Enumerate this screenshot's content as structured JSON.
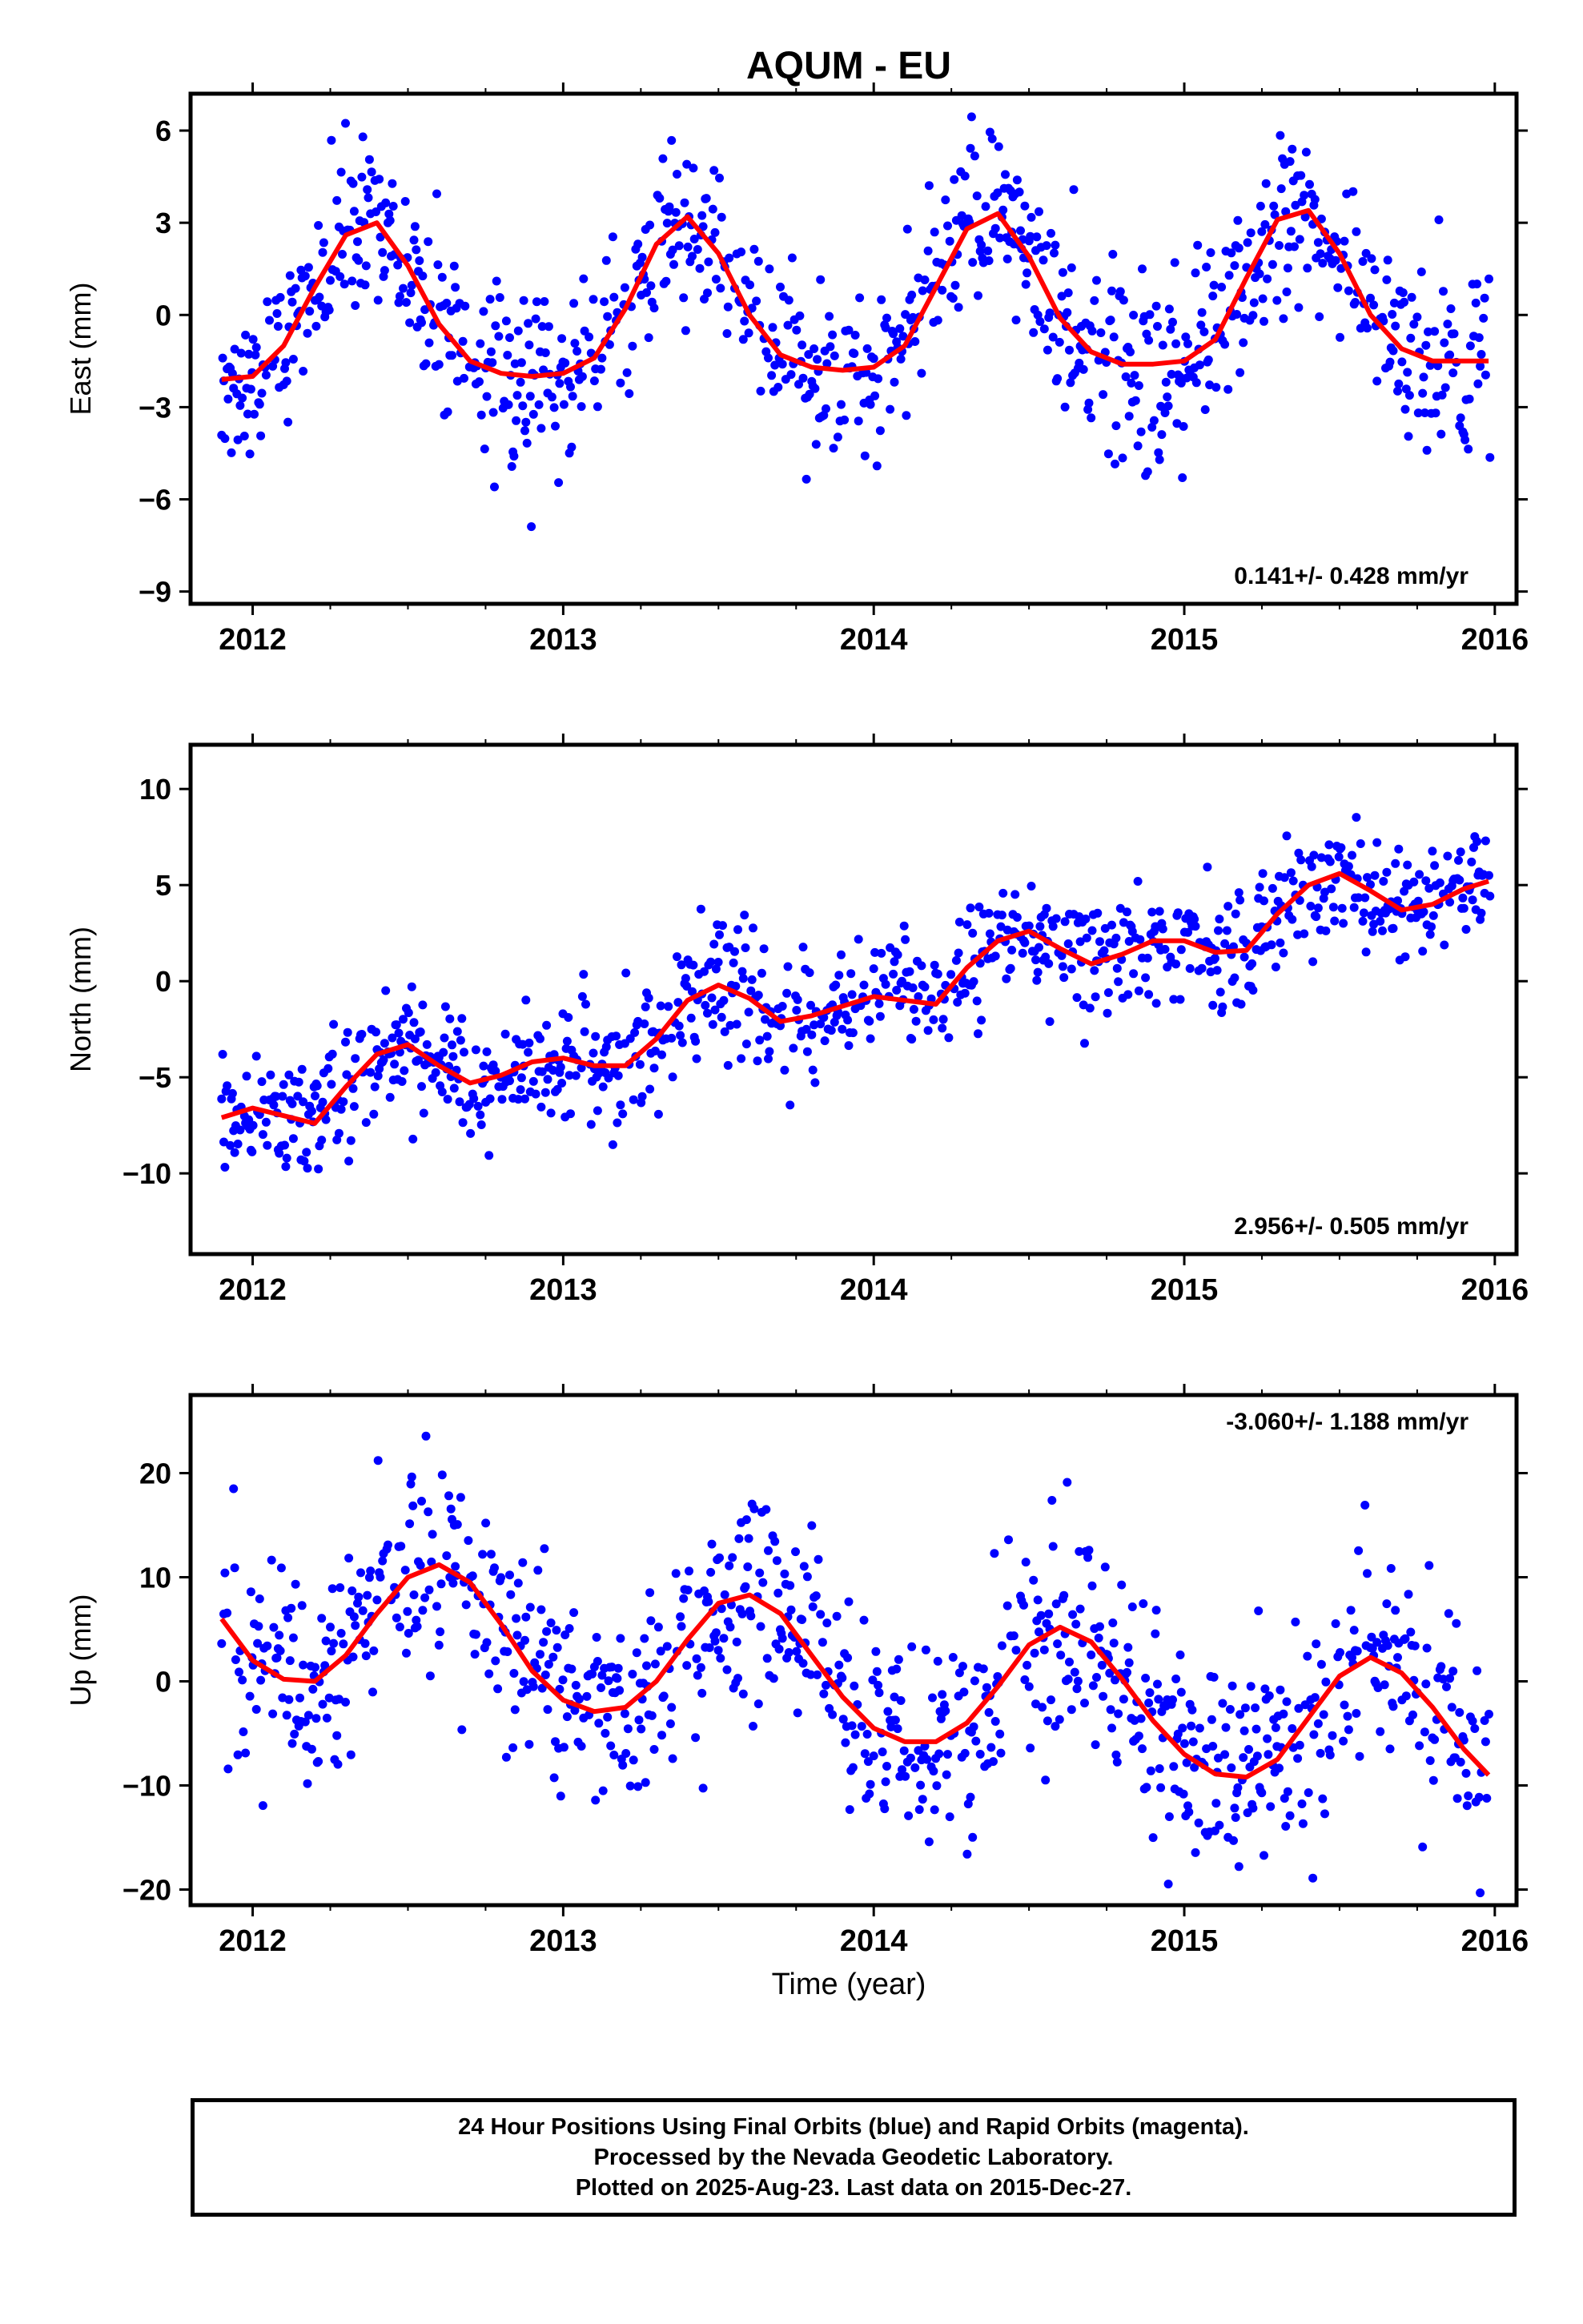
{
  "title": "AQUM - EU",
  "xlabel": "Time (year)",
  "footer": {
    "line1": "24 Hour Positions Using Final Orbits (blue) and Rapid Orbits (magenta).",
    "line2": "Processed by the Nevada Geodetic Laboratory.",
    "line3": "Plotted on 2025-Aug-23. Last data on 2015-Dec-27."
  },
  "colors": {
    "points": "#0000ff",
    "fit": "#ff0000",
    "frame": "#000000"
  },
  "chart_data": [
    {
      "type": "scatter",
      "ylabel": "East (mm)",
      "rate_label": "0.141+/- 0.428 mm/yr",
      "xlim": [
        2011.8,
        2016.07
      ],
      "ylim": [
        -9.4,
        7.2
      ],
      "xticks": [
        2012,
        2013,
        2014,
        2015,
        2016
      ],
      "yticks": [
        6,
        3,
        0,
        -3,
        -6,
        -9
      ],
      "fit": {
        "x": [
          2011.9,
          2012.0,
          2012.1,
          2012.2,
          2012.3,
          2012.4,
          2012.5,
          2012.6,
          2012.7,
          2012.8,
          2012.9,
          2013.0,
          2013.1,
          2013.2,
          2013.3,
          2013.4,
          2013.5,
          2013.6,
          2013.7,
          2013.8,
          2013.9,
          2014.0,
          2014.1,
          2014.2,
          2014.3,
          2014.4,
          2014.5,
          2014.6,
          2014.7,
          2014.8,
          2014.9,
          2015.0,
          2015.1,
          2015.2,
          2015.3,
          2015.4,
          2015.5,
          2015.6,
          2015.7,
          2015.8,
          2015.9,
          2015.98
        ],
        "y": [
          -2.1,
          -2.0,
          -1.0,
          0.9,
          2.6,
          3.0,
          1.6,
          -0.3,
          -1.5,
          -1.9,
          -2.0,
          -1.9,
          -1.4,
          0.2,
          2.3,
          3.2,
          2.0,
          0.0,
          -1.3,
          -1.7,
          -1.8,
          -1.7,
          -1.0,
          0.9,
          2.8,
          3.3,
          1.9,
          -0.1,
          -1.2,
          -1.6,
          -1.6,
          -1.5,
          -0.8,
          1.2,
          3.1,
          3.4,
          2.0,
          0.0,
          -1.1,
          -1.5,
          -1.5,
          -1.5
        ]
      }
    },
    {
      "type": "scatter",
      "ylabel": "North (mm)",
      "rate_label": "2.956+/- 0.505 mm/yr",
      "xlim": [
        2011.8,
        2016.07
      ],
      "ylim": [
        -14.2,
        12.3
      ],
      "xticks": [
        2012,
        2013,
        2014,
        2015,
        2016
      ],
      "yticks": [
        10,
        5,
        0,
        -5,
        -10
      ],
      "fit": {
        "x": [
          2011.9,
          2012.0,
          2012.1,
          2012.2,
          2012.3,
          2012.4,
          2012.5,
          2012.6,
          2012.7,
          2012.8,
          2012.9,
          2013.0,
          2013.1,
          2013.2,
          2013.3,
          2013.4,
          2013.5,
          2013.6,
          2013.7,
          2013.8,
          2013.9,
          2014.0,
          2014.1,
          2014.2,
          2014.3,
          2014.4,
          2014.5,
          2014.6,
          2014.7,
          2014.8,
          2014.9,
          2015.0,
          2015.1,
          2015.2,
          2015.3,
          2015.4,
          2015.5,
          2015.6,
          2015.7,
          2015.8,
          2015.9,
          2015.98
        ],
        "y": [
          -7.1,
          -6.6,
          -7.0,
          -7.4,
          -5.5,
          -3.8,
          -3.3,
          -4.4,
          -5.3,
          -4.9,
          -4.2,
          -4.0,
          -4.4,
          -4.4,
          -3.0,
          -1.0,
          -0.2,
          -0.9,
          -2.1,
          -1.8,
          -1.3,
          -0.8,
          -1.0,
          -1.2,
          0.7,
          2.1,
          2.6,
          1.7,
          0.9,
          1.4,
          2.1,
          2.1,
          1.5,
          1.6,
          3.5,
          5.0,
          5.6,
          4.7,
          3.7,
          4.0,
          4.8,
          5.2
        ]
      }
    },
    {
      "type": "scatter",
      "ylabel": "Up (mm)",
      "rate_label": "-3.060+/- 1.188 mm/yr",
      "xlim": [
        2011.8,
        2016.07
      ],
      "ylim": [
        -21.5,
        27.5
      ],
      "xticks": [
        2012,
        2013,
        2014,
        2015,
        2016
      ],
      "yticks": [
        20,
        10,
        0,
        -10,
        -20
      ],
      "fit": {
        "x": [
          2011.9,
          2012.0,
          2012.1,
          2012.2,
          2012.3,
          2012.4,
          2012.5,
          2012.6,
          2012.7,
          2012.8,
          2012.9,
          2013.0,
          2013.1,
          2013.2,
          2013.3,
          2013.4,
          2013.5,
          2013.6,
          2013.7,
          2013.8,
          2013.9,
          2014.0,
          2014.1,
          2014.2,
          2014.3,
          2014.4,
          2014.5,
          2014.6,
          2014.7,
          2014.8,
          2014.9,
          2015.0,
          2015.1,
          2015.2,
          2015.3,
          2015.4,
          2015.5,
          2015.6,
          2015.7,
          2015.8,
          2015.9,
          2015.98
        ],
        "y": [
          6.0,
          2.0,
          0.2,
          0.0,
          2.5,
          6.5,
          10.0,
          11.2,
          9.5,
          5.5,
          1.0,
          -1.8,
          -2.9,
          -2.5,
          0.0,
          4.0,
          7.5,
          8.3,
          6.5,
          2.5,
          -1.5,
          -4.5,
          -5.8,
          -5.8,
          -4.0,
          -0.5,
          3.5,
          5.2,
          3.8,
          0.2,
          -3.8,
          -7.0,
          -8.9,
          -9.2,
          -7.5,
          -3.5,
          0.5,
          2.3,
          0.8,
          -2.5,
          -6.5,
          -9.0
        ]
      }
    }
  ]
}
